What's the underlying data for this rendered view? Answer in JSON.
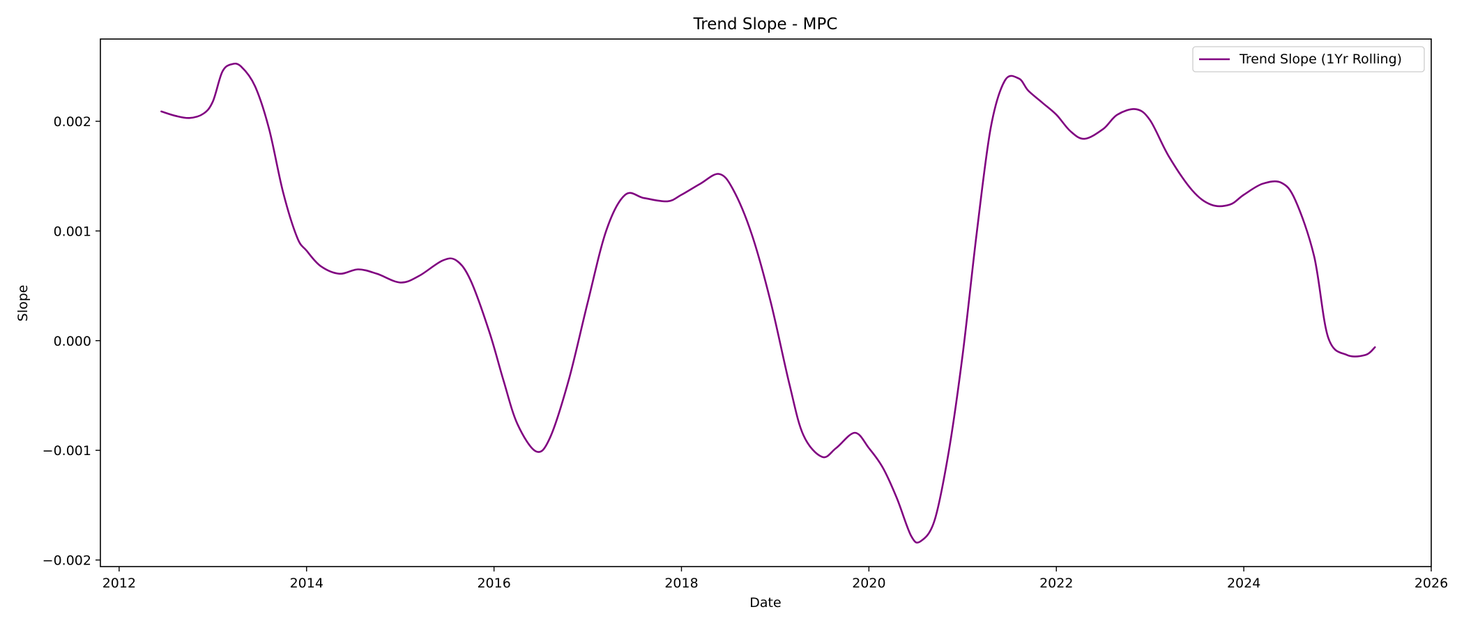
{
  "chart_data": {
    "type": "line",
    "title": "Trend Slope - MPC",
    "xlabel": "Date",
    "ylabel": "Slope",
    "xlim": [
      2011.8,
      2026.0
    ],
    "ylim": [
      -0.00206,
      0.00275
    ],
    "x_ticks": [
      2012,
      2014,
      2016,
      2018,
      2020,
      2022,
      2024,
      2026
    ],
    "y_ticks": [
      {
        "value": -0.002,
        "label": "−0.002"
      },
      {
        "value": -0.001,
        "label": "−0.001"
      },
      {
        "value": 0.0,
        "label": "0.000"
      },
      {
        "value": 0.001,
        "label": "0.001"
      },
      {
        "value": 0.002,
        "label": "0.002"
      }
    ],
    "grid": false,
    "legend_position": "top-right",
    "series": [
      {
        "name": "Trend Slope (1Yr Rolling)",
        "color": "#800080",
        "points": [
          [
            2012.45,
            0.00209
          ],
          [
            2012.6,
            0.00205
          ],
          [
            2012.75,
            0.00203
          ],
          [
            2012.9,
            0.00207
          ],
          [
            2013.0,
            0.00218
          ],
          [
            2013.1,
            0.00245
          ],
          [
            2013.2,
            0.00252
          ],
          [
            2013.3,
            0.0025
          ],
          [
            2013.45,
            0.00232
          ],
          [
            2013.6,
            0.00193
          ],
          [
            2013.75,
            0.00135
          ],
          [
            2013.9,
            0.00094
          ],
          [
            2014.0,
            0.00082
          ],
          [
            2014.15,
            0.00068
          ],
          [
            2014.35,
            0.00061
          ],
          [
            2014.55,
            0.00065
          ],
          [
            2014.75,
            0.00061
          ],
          [
            2015.0,
            0.00053
          ],
          [
            2015.2,
            0.00059
          ],
          [
            2015.45,
            0.00073
          ],
          [
            2015.6,
            0.00073
          ],
          [
            2015.75,
            0.00055
          ],
          [
            2015.95,
            8e-05
          ],
          [
            2016.1,
            -0.00036
          ],
          [
            2016.25,
            -0.00076
          ],
          [
            2016.45,
            -0.00101
          ],
          [
            2016.6,
            -0.00088
          ],
          [
            2016.8,
            -0.00035
          ],
          [
            2017.0,
            0.00035
          ],
          [
            2017.2,
            0.00101
          ],
          [
            2017.4,
            0.00133
          ],
          [
            2017.6,
            0.0013
          ],
          [
            2017.85,
            0.00127
          ],
          [
            2018.0,
            0.00133
          ],
          [
            2018.2,
            0.00143
          ],
          [
            2018.4,
            0.00152
          ],
          [
            2018.55,
            0.00138
          ],
          [
            2018.75,
            0.00097
          ],
          [
            2018.95,
            0.00036
          ],
          [
            2019.15,
            -0.00039
          ],
          [
            2019.3,
            -0.00086
          ],
          [
            2019.5,
            -0.00106
          ],
          [
            2019.65,
            -0.00098
          ],
          [
            2019.85,
            -0.00084
          ],
          [
            2020.0,
            -0.00098
          ],
          [
            2020.15,
            -0.00116
          ],
          [
            2020.3,
            -0.00144
          ],
          [
            2020.45,
            -0.00178
          ],
          [
            2020.55,
            -0.00183
          ],
          [
            2020.7,
            -0.00164
          ],
          [
            2020.85,
            -0.00102
          ],
          [
            2021.0,
            -0.00013
          ],
          [
            2021.15,
            0.00098
          ],
          [
            2021.3,
            0.00194
          ],
          [
            2021.45,
            0.00237
          ],
          [
            2021.6,
            0.00239
          ],
          [
            2021.7,
            0.00228
          ],
          [
            2021.85,
            0.00217
          ],
          [
            2022.0,
            0.00206
          ],
          [
            2022.15,
            0.00191
          ],
          [
            2022.3,
            0.00184
          ],
          [
            2022.5,
            0.00193
          ],
          [
            2022.65,
            0.00206
          ],
          [
            2022.85,
            0.00211
          ],
          [
            2023.0,
            0.00201
          ],
          [
            2023.2,
            0.00168
          ],
          [
            2023.45,
            0.00137
          ],
          [
            2023.65,
            0.00124
          ],
          [
            2023.85,
            0.00124
          ],
          [
            2024.0,
            0.00133
          ],
          [
            2024.2,
            0.00143
          ],
          [
            2024.4,
            0.00144
          ],
          [
            2024.55,
            0.00128
          ],
          [
            2024.75,
            0.00077
          ],
          [
            2024.9,
            3e-05
          ],
          [
            2025.1,
            -0.00013
          ],
          [
            2025.3,
            -0.00013
          ],
          [
            2025.4,
            -6e-05
          ]
        ]
      }
    ]
  }
}
